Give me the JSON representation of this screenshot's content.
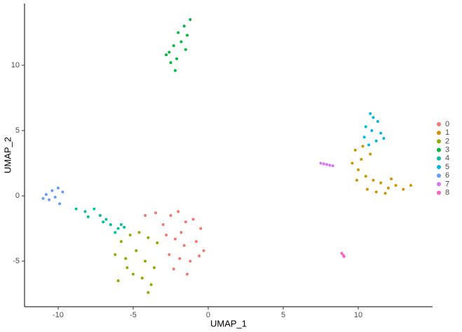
{
  "chart_data": {
    "type": "scatter",
    "xlabel": "UMAP_1",
    "ylabel": "UMAP_2",
    "xlim": [
      -12.24,
      14.95
    ],
    "ylim": [
      -8.49,
      14.73
    ],
    "xticks": [
      -10,
      -5,
      0,
      5,
      10
    ],
    "yticks": [
      -5,
      0,
      5,
      10
    ],
    "series": [
      {
        "name": "0",
        "color": "#F8766D",
        "x": [
          -2.5,
          -2.0,
          -1.5,
          -1.0,
          -0.5,
          -2.8,
          -2.2,
          -1.6,
          -0.8,
          -0.3,
          -2.6,
          -1.9,
          -1.2,
          -0.6,
          -2.3,
          -1.4,
          -3.5,
          -4.2,
          -3.0,
          -1.8
        ],
        "values": [
          -1.5,
          -1.2,
          -2.0,
          -1.8,
          -2.5,
          -3.0,
          -3.3,
          -3.8,
          -3.5,
          -4.2,
          -4.5,
          -4.8,
          -5.0,
          -4.6,
          -5.6,
          -6.0,
          -1.3,
          -1.5,
          -2.2,
          -2.8
        ]
      },
      {
        "name": "1",
        "color": "#D39200",
        "x": [
          9.8,
          10.3,
          10.8,
          9.6,
          10.0,
          10.5,
          11.0,
          11.5,
          12.0,
          12.5,
          13.0,
          13.5,
          10.2,
          11.2,
          12.2,
          9.9,
          10.6,
          11.8
        ],
        "values": [
          3.5,
          3.8,
          3.2,
          2.5,
          2.0,
          1.5,
          1.2,
          1.0,
          0.6,
          0.8,
          0.5,
          0.8,
          2.8,
          0.3,
          1.3,
          1.2,
          0.5,
          0.2
        ]
      },
      {
        "name": "2",
        "color": "#93AA00",
        "x": [
          -5.8,
          -5.2,
          -4.6,
          -4.0,
          -3.4,
          -6.2,
          -5.5,
          -4.8,
          -4.2,
          -3.6,
          -6.0,
          -5.0,
          -4.4,
          -3.8,
          -4.0,
          -5.4
        ],
        "values": [
          -3.5,
          -3.0,
          -2.8,
          -3.2,
          -3.6,
          -4.5,
          -4.8,
          -4.2,
          -5.0,
          -5.5,
          -6.5,
          -6.0,
          -6.3,
          -6.8,
          -7.4,
          -5.5
        ]
      },
      {
        "name": "3",
        "color": "#00BA38",
        "x": [
          -1.2,
          -1.6,
          -1.4,
          -2.0,
          -1.8,
          -2.3,
          -2.6,
          -1.5,
          -2.1,
          -2.5,
          -2.8,
          -2.2
        ],
        "values": [
          13.5,
          13.0,
          12.3,
          12.5,
          11.8,
          11.5,
          11.0,
          11.2,
          10.5,
          10.2,
          10.8,
          9.6
        ]
      },
      {
        "name": "4",
        "color": "#00C19F",
        "x": [
          -8.8,
          -8.2,
          -7.6,
          -7.2,
          -6.8,
          -6.5,
          -6.0,
          -5.6,
          -8.0,
          -7.0,
          -6.2,
          -5.8
        ],
        "values": [
          -1.0,
          -1.2,
          -1.0,
          -1.5,
          -1.8,
          -2.2,
          -2.5,
          -2.4,
          -1.6,
          -2.0,
          -2.8,
          -2.2
        ]
      },
      {
        "name": "5",
        "color": "#00B9E3",
        "x": [
          10.8,
          11.0,
          11.3,
          10.5,
          10.9,
          11.5,
          10.4,
          11.2,
          11.7,
          10.7
        ],
        "values": [
          6.3,
          6.0,
          5.7,
          5.3,
          5.0,
          4.8,
          4.5,
          4.2,
          4.4,
          3.9
        ]
      },
      {
        "name": "6",
        "color": "#619CFF",
        "x": [
          -10.8,
          -10.4,
          -10.0,
          -9.7,
          -10.6,
          -10.2,
          -9.9,
          -11.0
        ],
        "values": [
          0.1,
          0.4,
          0.6,
          0.3,
          -0.3,
          -0.1,
          -0.6,
          -0.2
        ]
      },
      {
        "name": "7",
        "color": "#DB72FB",
        "x": [
          7.5,
          7.7,
          7.9,
          8.1,
          8.3
        ],
        "values": [
          2.5,
          2.45,
          2.4,
          2.35,
          2.3
        ]
      },
      {
        "name": "8",
        "color": "#FF61C3",
        "x": [
          8.9,
          9.0,
          9.05
        ],
        "values": [
          -4.4,
          -4.55,
          -4.65
        ]
      }
    ]
  }
}
